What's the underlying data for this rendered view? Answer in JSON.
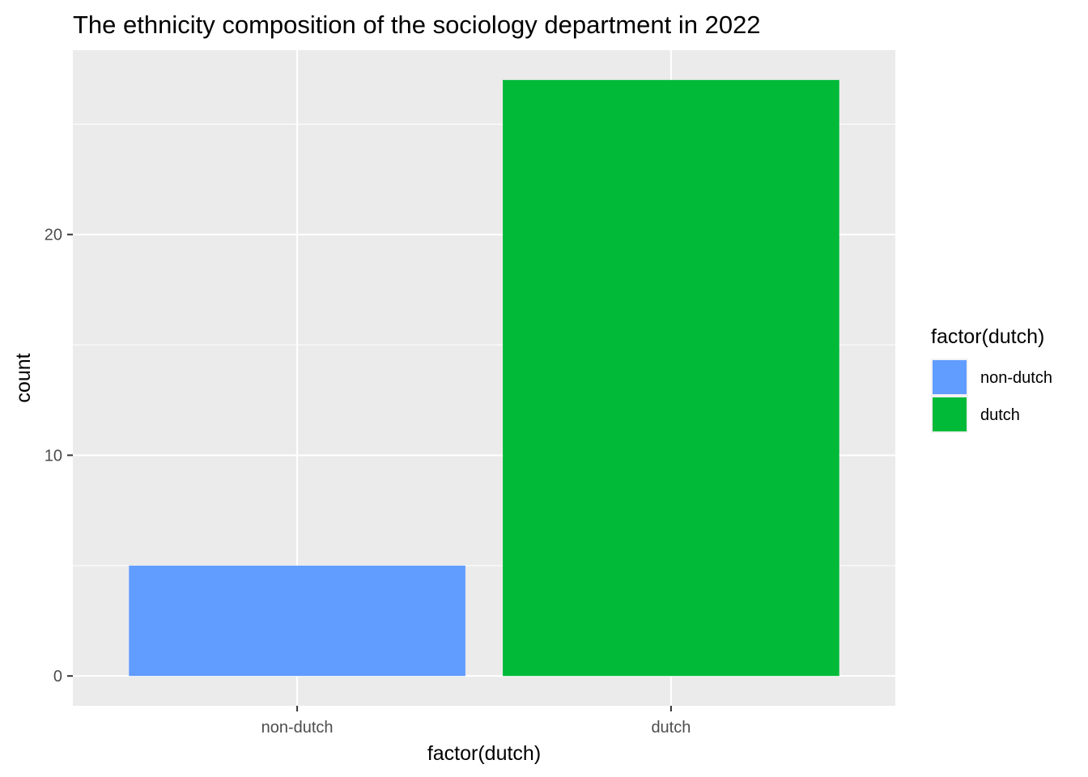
{
  "chart_data": {
    "type": "bar",
    "title": "The ethnicity composition of the sociology department in 2022",
    "xlabel": "factor(dutch)",
    "ylabel": "count",
    "categories": [
      "non-dutch",
      "dutch"
    ],
    "values": [
      5,
      27
    ],
    "colors": [
      "#619CFF",
      "#00BA38"
    ],
    "ylim": [
      -1.35,
      28.35
    ],
    "yticks": [
      0,
      10,
      20
    ],
    "grid": true,
    "panel_background": "#EBEBEB",
    "legend": {
      "title": "factor(dutch)",
      "placement": "right",
      "entries": [
        {
          "label": "non-dutch",
          "color": "#619CFF"
        },
        {
          "label": "dutch",
          "color": "#00BA38"
        }
      ]
    }
  }
}
